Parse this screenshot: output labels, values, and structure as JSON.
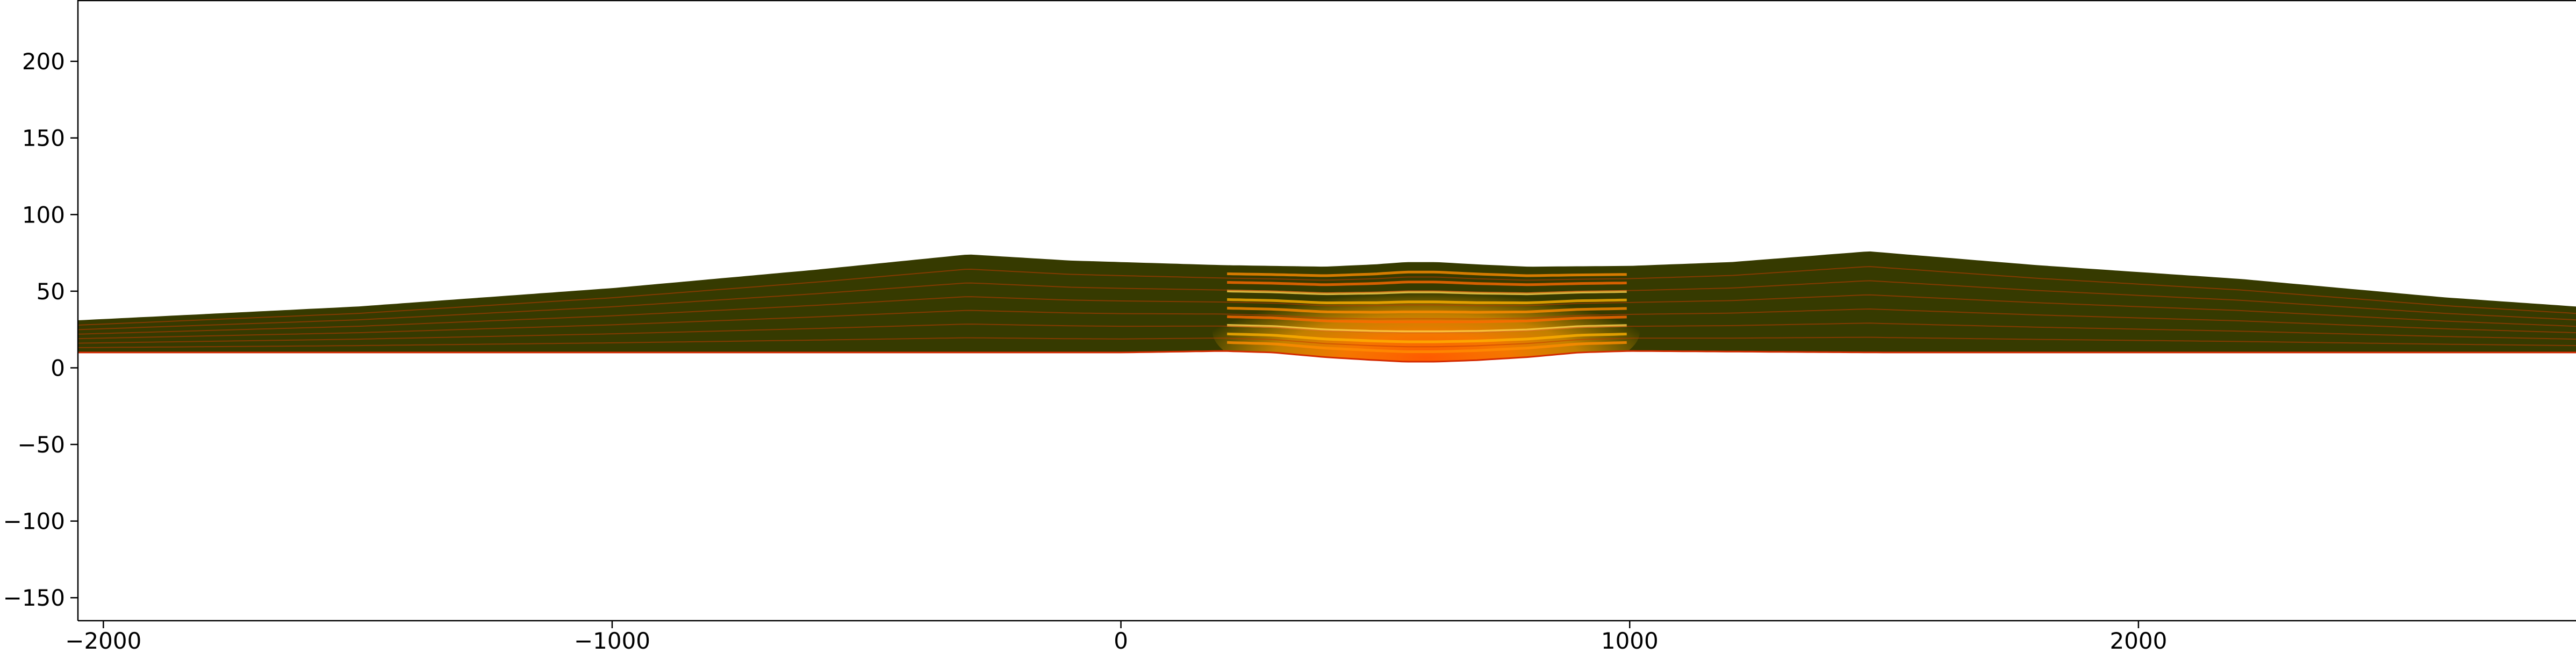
{
  "chart_data": {
    "type": "area",
    "title": "",
    "xlabel": "",
    "ylabel": "",
    "xlim": [
      -2050,
      2860
    ],
    "ylim": [
      -165,
      240
    ],
    "xticks": [
      -2000,
      -1000,
      0,
      1000,
      2000
    ],
    "xtick_labels": [
      "−2000",
      "−1000",
      "0",
      "1000",
      "2000"
    ],
    "yticks": [
      -150,
      -100,
      -50,
      0,
      50,
      100,
      150,
      200
    ],
    "ytick_labels": [
      "−150",
      "−100",
      "−50",
      "0",
      "50",
      "100",
      "150",
      "200"
    ],
    "grid": false,
    "legend": "none",
    "fill_color": "#363a00",
    "layer_line_color": "#c23a00",
    "hot_colors": [
      "#ff6a00",
      "#ff8c00",
      "#ffb000",
      "#ffd24a"
    ],
    "top_surface": {
      "x": [
        -2050,
        -1500,
        -1000,
        -600,
        -300,
        -100,
        200,
        400,
        500,
        560,
        620,
        700,
        800,
        1000,
        1200,
        1470,
        1800,
        2200,
        2600,
        2860
      ],
      "y": [
        31,
        40,
        52,
        64,
        74,
        70,
        67,
        66,
        67.5,
        69,
        69,
        67.5,
        66,
        66.5,
        69,
        76,
        67,
        58,
        46,
        40
      ]
    },
    "base_surface": {
      "x": [
        -2050,
        -1000,
        0,
        200,
        300,
        400,
        500,
        560,
        620,
        700,
        800,
        900,
        1000,
        1500,
        2860
      ],
      "y": [
        10,
        10,
        10,
        11,
        10,
        7,
        5,
        4,
        4,
        5,
        7,
        10,
        11,
        10,
        10
      ]
    },
    "internal_layer_fractions": [
      0.15,
      0.29,
      0.43,
      0.57,
      0.71,
      0.85
    ],
    "hot_zone": {
      "x_center": 600,
      "x_halfwidth": 420,
      "bands": 9
    }
  }
}
